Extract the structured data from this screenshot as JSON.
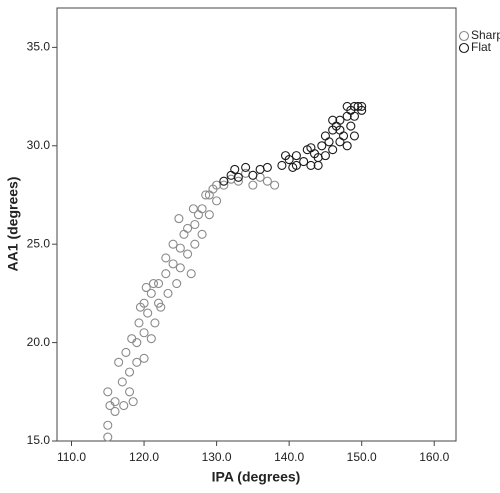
{
  "chart_data": {
    "type": "scatter",
    "x_label": "IPA (degrees)",
    "y_label": "AA1 (degrees)",
    "xlim": [
      108,
      163
    ],
    "ylim": [
      15,
      37
    ],
    "xticks": [
      {
        "value": 110,
        "label": "110.0"
      },
      {
        "value": 120,
        "label": "120.0"
      },
      {
        "value": 130,
        "label": "130.0"
      },
      {
        "value": 140,
        "label": "140.0"
      },
      {
        "value": 150,
        "label": "150.0"
      },
      {
        "value": 160,
        "label": "160.0"
      }
    ],
    "yticks": [
      {
        "value": 15,
        "label": "15.0"
      },
      {
        "value": 20,
        "label": "20.0"
      },
      {
        "value": 25,
        "label": "25.0"
      },
      {
        "value": 30,
        "label": "30.0"
      },
      {
        "value": 35,
        "label": "35.0"
      }
    ],
    "legend": "right",
    "series": [
      {
        "name": "Sharp",
        "color": "#8a8a8a",
        "x": [
          115,
          115,
          115.3,
          115,
          116,
          116,
          116.5,
          117,
          117.5,
          118,
          118,
          118.3,
          118.5,
          119,
          119,
          119.3,
          119.5,
          120,
          120,
          120.3,
          120.5,
          121,
          121.3,
          121.5,
          122,
          122.3,
          123,
          123,
          123.3,
          124,
          124,
          124.5,
          125,
          125,
          125.5,
          126,
          126,
          126.5,
          127,
          127,
          127.5,
          128,
          128,
          128.5,
          129,
          129,
          129.5,
          130,
          130,
          131,
          132,
          133,
          134,
          135,
          136,
          137,
          138,
          120,
          121,
          122,
          124.8,
          126.8,
          117.2
        ],
        "values": [
          15.2,
          15.8,
          16.8,
          17.5,
          16.5,
          17,
          19,
          18,
          19.5,
          17.5,
          18.5,
          20.2,
          17,
          19,
          20,
          21,
          21.8,
          20.5,
          22,
          22.8,
          21.5,
          22.5,
          23,
          21,
          22,
          21.8,
          23.5,
          24.3,
          22.5,
          24,
          25,
          23,
          23.8,
          24.8,
          25.5,
          24.5,
          25.8,
          23.5,
          26,
          25,
          26.5,
          25.5,
          26.8,
          27.5,
          26.5,
          27.5,
          27.8,
          27.2,
          28,
          28,
          28.3,
          28.2,
          28.6,
          28,
          28.4,
          28.2,
          28,
          19.2,
          20.2,
          23,
          26.3,
          26.8,
          16.8
        ]
      },
      {
        "name": "Flat",
        "color": "#1a1a1a",
        "x": [
          131,
          132,
          132.5,
          133,
          134,
          135,
          136,
          137,
          139,
          140,
          140.5,
          141,
          142,
          142.5,
          143,
          143.5,
          144,
          144.5,
          145,
          145,
          145.5,
          146,
          146,
          146.5,
          147,
          147,
          147.5,
          148,
          148,
          148.5,
          148.5,
          149,
          149,
          149.5,
          150,
          150,
          149,
          148,
          147,
          146,
          144,
          141,
          139.5,
          143
        ],
        "values": [
          28.2,
          28.5,
          28.8,
          28.4,
          28.9,
          28.5,
          28.8,
          28.9,
          29,
          29.3,
          28.9,
          29.5,
          29.2,
          29.8,
          29,
          29.6,
          29.4,
          30,
          29.5,
          30.5,
          30.2,
          30.8,
          29.8,
          31,
          30.2,
          31.3,
          30.5,
          31.5,
          30,
          31,
          31.8,
          30.5,
          31.5,
          32,
          31.8,
          32,
          32,
          32,
          30.8,
          31.3,
          29,
          29,
          29.5,
          29.9
        ]
      }
    ]
  }
}
